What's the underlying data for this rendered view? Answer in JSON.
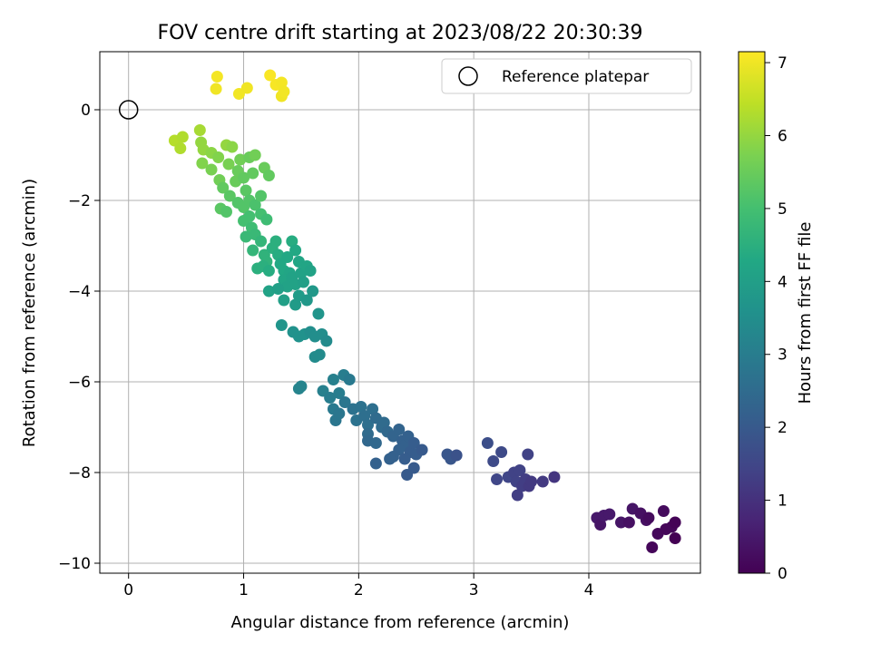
{
  "chart_data": {
    "type": "scatter",
    "title": "FOV centre drift starting at 2023/08/22 20:30:39",
    "xlabel": "Angular distance from reference (arcmin)",
    "ylabel": "Rotation from reference (arcmin)",
    "xlim": [
      -0.25,
      4.97
    ],
    "ylim": [
      -10.22,
      1.28
    ],
    "xticks": [
      "0",
      "1",
      "2",
      "3",
      "4"
    ],
    "yticks": [
      "−10",
      "−8",
      "−6",
      "−4",
      "−2",
      "0"
    ],
    "grid": true,
    "colormap": "viridis",
    "colorbar": {
      "label": "Hours from first FF file",
      "range": [
        0,
        7.15
      ],
      "ticks": [
        "0",
        "1",
        "2",
        "3",
        "4",
        "5",
        "6",
        "7"
      ]
    },
    "legend": {
      "position": "top-right",
      "entries": [
        "Reference platepar"
      ]
    },
    "reference_point": {
      "x": 0,
      "y": 0
    },
    "points": [
      [
        0.77,
        0.73,
        7.05
      ],
      [
        0.76,
        0.46,
        7.0
      ],
      [
        0.96,
        0.35,
        7.02
      ],
      [
        1.03,
        0.48,
        7.0
      ],
      [
        1.23,
        0.76,
        7.1
      ],
      [
        1.28,
        0.55,
        7.08
      ],
      [
        1.33,
        0.6,
        7.05
      ],
      [
        1.33,
        0.3,
        7.0
      ],
      [
        1.35,
        0.4,
        7.03
      ],
      [
        0.4,
        -0.68,
        6.35
      ],
      [
        0.45,
        -0.85,
        6.3
      ],
      [
        0.47,
        -0.6,
        6.3
      ],
      [
        0.62,
        -0.45,
        6.2
      ],
      [
        0.63,
        -0.72,
        6.0
      ],
      [
        0.65,
        -0.88,
        6.0
      ],
      [
        0.64,
        -1.18,
        5.8
      ],
      [
        0.72,
        -0.95,
        5.9
      ],
      [
        0.72,
        -1.32,
        5.7
      ],
      [
        0.78,
        -1.05,
        5.8
      ],
      [
        0.79,
        -1.55,
        5.6
      ],
      [
        0.85,
        -0.78,
        6.0
      ],
      [
        0.87,
        -1.2,
        5.7
      ],
      [
        0.9,
        -0.82,
        5.9
      ],
      [
        0.93,
        -1.58,
        5.5
      ],
      [
        0.95,
        -1.35,
        5.5
      ],
      [
        0.97,
        -1.1,
        5.6
      ],
      [
        1.0,
        -1.5,
        5.4
      ],
      [
        1.02,
        -1.78,
        5.3
      ],
      [
        1.05,
        -1.05,
        5.5
      ],
      [
        1.08,
        -1.4,
        5.4
      ],
      [
        1.1,
        -1.0,
        5.6
      ],
      [
        1.18,
        -1.28,
        5.5
      ],
      [
        1.22,
        -1.45,
        5.4
      ],
      [
        0.82,
        -1.72,
        5.4
      ],
      [
        0.88,
        -1.9,
        5.3
      ],
      [
        0.95,
        -2.05,
        5.2
      ],
      [
        1.0,
        -2.15,
        5.2
      ],
      [
        1.05,
        -2.0,
        5.2
      ],
      [
        1.1,
        -2.1,
        5.1
      ],
      [
        1.15,
        -1.9,
        5.2
      ],
      [
        0.8,
        -2.18,
        5.3
      ],
      [
        0.85,
        -2.25,
        5.2
      ],
      [
        1.15,
        -2.3,
        5.0
      ],
      [
        1.2,
        -2.42,
        4.9
      ],
      [
        1.0,
        -2.45,
        5.0
      ],
      [
        1.05,
        -2.35,
        5.0
      ],
      [
        1.07,
        -2.6,
        4.9
      ],
      [
        1.1,
        -2.75,
        4.8
      ],
      [
        1.02,
        -2.8,
        4.8
      ],
      [
        1.08,
        -3.1,
        4.7
      ],
      [
        1.15,
        -2.9,
        4.7
      ],
      [
        1.18,
        -3.2,
        4.6
      ],
      [
        1.2,
        -3.35,
        4.6
      ],
      [
        1.25,
        -3.05,
        4.5
      ],
      [
        1.28,
        -2.9,
        4.5
      ],
      [
        1.3,
        -3.2,
        4.4
      ],
      [
        1.12,
        -3.5,
        4.5
      ],
      [
        1.17,
        -3.45,
        4.5
      ],
      [
        1.22,
        -3.55,
        4.4
      ],
      [
        1.32,
        -3.4,
        4.3
      ],
      [
        1.35,
        -3.55,
        4.3
      ],
      [
        1.38,
        -3.25,
        4.3
      ],
      [
        1.42,
        -2.9,
        4.4
      ],
      [
        1.45,
        -3.1,
        4.3
      ],
      [
        1.48,
        -3.35,
        4.2
      ],
      [
        1.4,
        -3.6,
        4.2
      ],
      [
        1.35,
        -3.75,
        4.2
      ],
      [
        1.38,
        -3.9,
        4.1
      ],
      [
        1.42,
        -3.7,
        4.1
      ],
      [
        1.45,
        -3.85,
        4.1
      ],
      [
        1.5,
        -3.6,
        4.1
      ],
      [
        1.52,
        -3.8,
        4.0
      ],
      [
        1.55,
        -3.45,
        4.2
      ],
      [
        1.58,
        -3.55,
        4.1
      ],
      [
        1.22,
        -4.0,
        4.1
      ],
      [
        1.3,
        -3.95,
        4.0
      ],
      [
        1.35,
        -4.2,
        4.0
      ],
      [
        1.45,
        -4.3,
        3.9
      ],
      [
        1.48,
        -4.1,
        3.9
      ],
      [
        1.55,
        -4.2,
        3.8
      ],
      [
        1.6,
        -4.0,
        3.8
      ],
      [
        1.33,
        -4.75,
        3.7
      ],
      [
        1.43,
        -4.9,
        3.6
      ],
      [
        1.48,
        -5.0,
        3.6
      ],
      [
        1.53,
        -4.95,
        3.6
      ],
      [
        1.58,
        -4.9,
        3.5
      ],
      [
        1.65,
        -4.5,
        3.7
      ],
      [
        1.62,
        -5.0,
        3.5
      ],
      [
        1.68,
        -4.95,
        3.5
      ],
      [
        1.72,
        -5.1,
        3.4
      ],
      [
        1.62,
        -5.45,
        3.4
      ],
      [
        1.66,
        -5.4,
        3.4
      ],
      [
        1.48,
        -6.15,
        3.2
      ],
      [
        1.5,
        -6.1,
        3.2
      ],
      [
        1.69,
        -6.2,
        3.1
      ],
      [
        1.78,
        -5.95,
        3.1
      ],
      [
        1.75,
        -6.35,
        3.0
      ],
      [
        1.83,
        -6.25,
        3.0
      ],
      [
        1.87,
        -5.85,
        3.0
      ],
      [
        1.92,
        -5.95,
        2.9
      ],
      [
        1.78,
        -6.6,
        2.9
      ],
      [
        1.8,
        -6.85,
        2.8
      ],
      [
        1.83,
        -6.7,
        2.8
      ],
      [
        1.88,
        -6.45,
        2.8
      ],
      [
        1.95,
        -6.6,
        2.7
      ],
      [
        1.98,
        -6.85,
        2.7
      ],
      [
        2.02,
        -6.55,
        2.7
      ],
      [
        2.05,
        -6.75,
        2.6
      ],
      [
        2.08,
        -6.95,
        2.6
      ],
      [
        2.12,
        -6.6,
        2.6
      ],
      [
        2.15,
        -6.8,
        2.5
      ],
      [
        2.2,
        -7.0,
        2.5
      ],
      [
        2.08,
        -7.15,
        2.5
      ],
      [
        2.08,
        -7.3,
        2.4
      ],
      [
        2.15,
        -7.35,
        2.4
      ],
      [
        2.22,
        -6.9,
        2.5
      ],
      [
        2.25,
        -7.1,
        2.4
      ],
      [
        2.3,
        -7.2,
        2.3
      ],
      [
        2.35,
        -7.05,
        2.3
      ],
      [
        2.38,
        -7.3,
        2.2
      ],
      [
        2.4,
        -7.4,
        2.2
      ],
      [
        2.43,
        -7.2,
        2.2
      ],
      [
        2.45,
        -7.55,
        2.1
      ],
      [
        2.48,
        -7.35,
        2.1
      ],
      [
        2.35,
        -7.5,
        2.2
      ],
      [
        2.3,
        -7.65,
        2.2
      ],
      [
        2.4,
        -7.7,
        2.1
      ],
      [
        2.5,
        -7.6,
        2.1
      ],
      [
        2.55,
        -7.5,
        2.0
      ],
      [
        2.27,
        -7.7,
        2.2
      ],
      [
        2.15,
        -7.8,
        2.2
      ],
      [
        2.42,
        -8.05,
        2.0
      ],
      [
        2.48,
        -7.9,
        2.0
      ],
      [
        2.77,
        -7.6,
        1.9
      ],
      [
        2.8,
        -7.7,
        1.9
      ],
      [
        2.85,
        -7.62,
        1.8
      ],
      [
        3.12,
        -7.35,
        1.7
      ],
      [
        3.17,
        -7.75,
        1.6
      ],
      [
        3.2,
        -8.15,
        1.5
      ],
      [
        3.24,
        -7.55,
        1.6
      ],
      [
        3.3,
        -8.1,
        1.5
      ],
      [
        3.35,
        -8.0,
        1.4
      ],
      [
        3.37,
        -8.2,
        1.4
      ],
      [
        3.38,
        -8.5,
        1.3
      ],
      [
        3.4,
        -7.95,
        1.4
      ],
      [
        3.42,
        -8.3,
        1.3
      ],
      [
        3.45,
        -8.15,
        1.3
      ],
      [
        3.47,
        -7.6,
        1.4
      ],
      [
        3.48,
        -8.3,
        1.2
      ],
      [
        3.5,
        -8.2,
        1.2
      ],
      [
        3.6,
        -8.2,
        1.2
      ],
      [
        3.7,
        -8.1,
        1.1
      ],
      [
        4.07,
        -9.0,
        0.5
      ],
      [
        4.1,
        -9.15,
        0.4
      ],
      [
        4.13,
        -8.95,
        0.5
      ],
      [
        4.18,
        -8.92,
        0.5
      ],
      [
        4.28,
        -9.1,
        0.4
      ],
      [
        4.35,
        -9.1,
        0.3
      ],
      [
        4.38,
        -8.8,
        0.4
      ],
      [
        4.45,
        -8.9,
        0.3
      ],
      [
        4.5,
        -9.05,
        0.3
      ],
      [
        4.52,
        -9.0,
        0.2
      ],
      [
        4.55,
        -9.65,
        0.1
      ],
      [
        4.6,
        -9.35,
        0.15
      ],
      [
        4.65,
        -8.85,
        0.2
      ],
      [
        4.67,
        -9.25,
        0.1
      ],
      [
        4.72,
        -9.2,
        0.1
      ],
      [
        4.75,
        -9.1,
        0.05
      ],
      [
        4.75,
        -9.45,
        0.0
      ]
    ]
  }
}
